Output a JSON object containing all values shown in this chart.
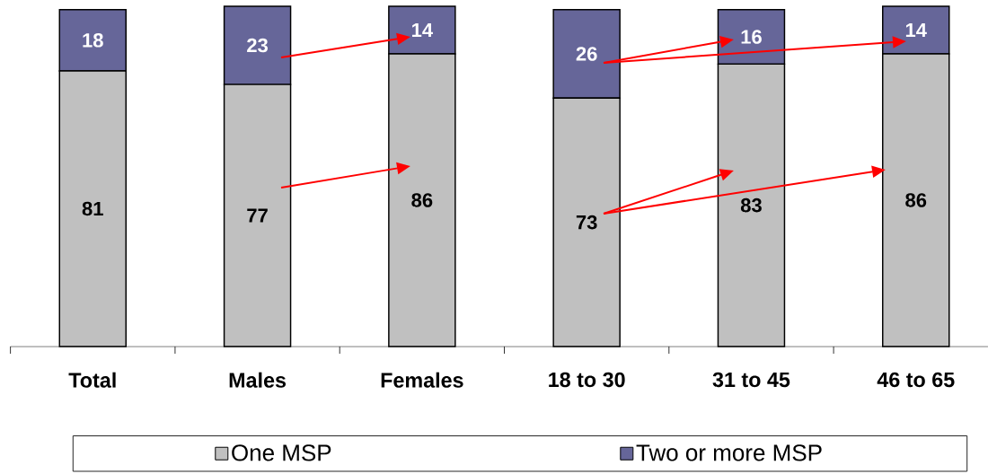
{
  "chart_data": {
    "type": "bar",
    "stacked": true,
    "categories": [
      "Total",
      "Males",
      "Females",
      "18 to 30",
      "31 to 45",
      "46 to 65"
    ],
    "series": [
      {
        "name": "One MSP",
        "color": "#c0c0c0",
        "values": [
          81,
          77,
          86,
          73,
          83,
          86
        ]
      },
      {
        "name": "Two or more MSP",
        "color": "#666699",
        "values": [
          18,
          23,
          14,
          26,
          16,
          14
        ]
      }
    ],
    "data_labels": true,
    "legend": "bottom"
  }
}
